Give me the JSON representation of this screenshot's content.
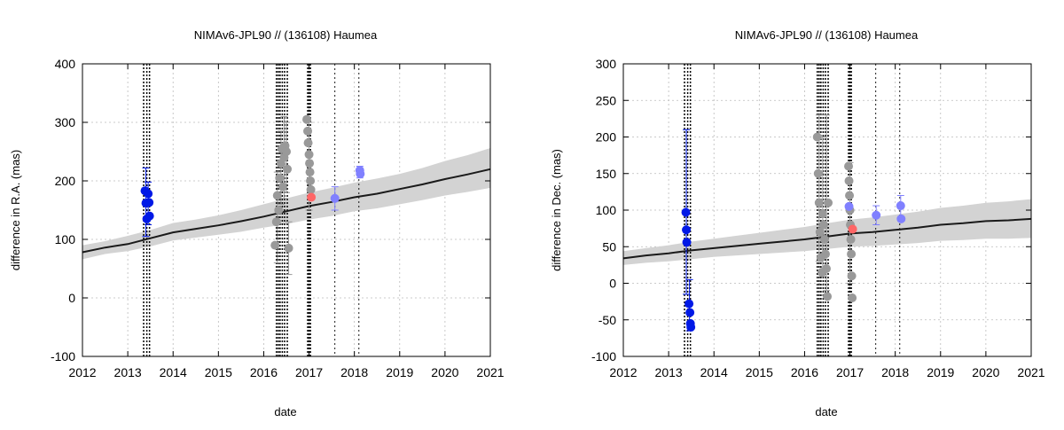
{
  "chart_data": [
    {
      "type": "scatter",
      "title": "NIMAv6-JPL90 // (136108) Haumea",
      "xlabel": "date",
      "ylabel": "difference in R.A. (mas)",
      "xlim": [
        2012,
        2021
      ],
      "ylim": [
        -100,
        400
      ],
      "xticks": [
        2012,
        2013,
        2014,
        2015,
        2016,
        2017,
        2018,
        2019,
        2020,
        2021
      ],
      "yticks": [
        -100,
        0,
        100,
        200,
        300,
        400
      ],
      "grid": true,
      "colors": {
        "blue": "#0019e6",
        "light_blue": "#8080ff",
        "gray": "#999999",
        "red": "#ff6666",
        "model": "#1a1a1a",
        "band": "#d3d3d3"
      },
      "model_curve": {
        "x": [
          2012.0,
          2012.5,
          2013.0,
          2013.5,
          2014.0,
          2014.5,
          2015.0,
          2015.5,
          2016.0,
          2016.5,
          2017.0,
          2017.5,
          2018.0,
          2018.5,
          2019.0,
          2019.5,
          2020.0,
          2020.5,
          2021.0
        ],
        "y": [
          78,
          86,
          92,
          102,
          112,
          118,
          124,
          131,
          139,
          148,
          157,
          164,
          172,
          178,
          186,
          194,
          203,
          211,
          220
        ],
        "band_upper": [
          90,
          97,
          106,
          116,
          128,
          134,
          141,
          150,
          160,
          170,
          180,
          188,
          197,
          204,
          212,
          222,
          234,
          244,
          256
        ],
        "band_lower": [
          66,
          75,
          80,
          88,
          98,
          103,
          108,
          113,
          120,
          126,
          134,
          140,
          148,
          153,
          160,
          167,
          175,
          181,
          188
        ]
      },
      "vlines": {
        "heavy": [
          2013.35,
          2013.42,
          2013.48,
          2016.28,
          2016.32,
          2016.36,
          2016.41,
          2016.46,
          2016.52,
          2016.97,
          2017.0,
          2017.03
        ],
        "thin": [
          2017.57,
          2018.1
        ]
      },
      "series": [
        {
          "name": "gray",
          "color": "#999999",
          "points": [
            [
              2016.25,
              90
            ],
            [
              2016.28,
              130
            ],
            [
              2016.3,
              175
            ],
            [
              2016.33,
              150
            ],
            [
              2016.35,
              205
            ],
            [
              2016.38,
              230
            ],
            [
              2016.4,
              255
            ],
            [
              2016.42,
              190
            ],
            [
              2016.45,
              240
            ],
            [
              2016.47,
              260
            ],
            [
              2016.5,
              250
            ],
            [
              2016.52,
              220
            ],
            [
              2016.55,
              85
            ],
            [
              2016.95,
              305
            ],
            [
              2016.97,
              285
            ],
            [
              2016.98,
              265
            ],
            [
              2017.0,
              245
            ],
            [
              2017.01,
              230
            ],
            [
              2017.02,
              215
            ],
            [
              2017.03,
              200
            ],
            [
              2017.04,
              185
            ]
          ],
          "err": [
            [
              2016.3,
              60,
              215
            ],
            [
              2016.38,
              160,
              285
            ],
            [
              2016.45,
              170,
              310
            ],
            [
              2016.5,
              180,
              300
            ],
            [
              2016.55,
              40,
              130
            ],
            [
              2017.0,
              150,
              300
            ]
          ]
        },
        {
          "name": "blue",
          "color": "#0019e6",
          "points": [
            [
              2013.38,
              183
            ],
            [
              2013.4,
              162
            ],
            [
              2013.42,
              135
            ],
            [
              2013.45,
              178
            ],
            [
              2013.47,
              163
            ],
            [
              2013.48,
              140
            ]
          ],
          "err": [
            [
              2013.4,
              105,
              222
            ],
            [
              2013.45,
              125,
              198
            ]
          ]
        },
        {
          "name": "light blue",
          "color": "#8080ff",
          "points": [
            [
              2017.57,
              170
            ],
            [
              2018.12,
              218
            ],
            [
              2018.13,
              212
            ]
          ],
          "err": [
            [
              2017.57,
              150,
              190
            ],
            [
              2018.12,
              205,
              225
            ]
          ]
        },
        {
          "name": "red",
          "color": "#ff6666",
          "points": [
            [
              2017.05,
              172
            ]
          ],
          "err": []
        }
      ]
    },
    {
      "type": "scatter",
      "title": "NIMAv6-JPL90 // (136108) Haumea",
      "xlabel": "date",
      "ylabel": "difference in Dec. (mas)",
      "xlim": [
        2012,
        2021
      ],
      "ylim": [
        -100,
        300
      ],
      "xticks": [
        2012,
        2013,
        2014,
        2015,
        2016,
        2017,
        2018,
        2019,
        2020,
        2021
      ],
      "yticks": [
        -100,
        -50,
        0,
        50,
        100,
        150,
        200,
        250,
        300
      ],
      "grid": true,
      "colors": {
        "blue": "#0019e6",
        "light_blue": "#8080ff",
        "gray": "#999999",
        "red": "#ff6666",
        "model": "#1a1a1a",
        "band": "#d3d3d3"
      },
      "model_curve": {
        "x": [
          2012.0,
          2012.5,
          2013.0,
          2013.5,
          2014.0,
          2014.5,
          2015.0,
          2015.5,
          2016.0,
          2016.5,
          2017.0,
          2017.5,
          2018.0,
          2018.5,
          2019.0,
          2019.5,
          2020.0,
          2020.5,
          2021.0
        ],
        "y": [
          34,
          38,
          41,
          45,
          48,
          51,
          54,
          57,
          60,
          64,
          68,
          70,
          73,
          76,
          80,
          82,
          85,
          86,
          88
        ],
        "band_upper": [
          44,
          48,
          52,
          57,
          61,
          65,
          69,
          73,
          77,
          82,
          87,
          90,
          94,
          98,
          103,
          106,
          110,
          112,
          115
        ],
        "band_lower": [
          25,
          28,
          30,
          33,
          36,
          38,
          40,
          42,
          44,
          47,
          50,
          51,
          53,
          55,
          58,
          59,
          61,
          61,
          62
        ]
      },
      "vlines": {
        "heavy": [
          2013.35,
          2013.42,
          2013.48,
          2016.28,
          2016.32,
          2016.36,
          2016.41,
          2016.46,
          2016.52,
          2016.97,
          2017.0,
          2017.03
        ],
        "thin": [
          2017.57,
          2018.1
        ]
      },
      "series": [
        {
          "name": "gray",
          "color": "#999999",
          "points": [
            [
              2016.28,
              200
            ],
            [
              2016.3,
              150
            ],
            [
              2016.32,
              110
            ],
            [
              2016.34,
              70
            ],
            [
              2016.36,
              35
            ],
            [
              2016.38,
              15
            ],
            [
              2016.4,
              95
            ],
            [
              2016.42,
              80
            ],
            [
              2016.44,
              60
            ],
            [
              2016.46,
              40
            ],
            [
              2016.48,
              20
            ],
            [
              2016.5,
              -18
            ],
            [
              2016.52,
              110
            ],
            [
              2016.97,
              160
            ],
            [
              2016.98,
              140
            ],
            [
              2016.99,
              120
            ],
            [
              2017.0,
              100
            ],
            [
              2017.01,
              80
            ],
            [
              2017.02,
              60
            ],
            [
              2017.03,
              40
            ],
            [
              2017.04,
              10
            ],
            [
              2017.05,
              -20
            ]
          ],
          "err": [
            [
              2016.32,
              30,
              230
            ],
            [
              2016.4,
              10,
              200
            ],
            [
              2016.48,
              -10,
              230
            ],
            [
              2017.0,
              0,
              165
            ]
          ]
        },
        {
          "name": "blue",
          "color": "#0019e6",
          "points": [
            [
              2013.38,
              97
            ],
            [
              2013.39,
              73
            ],
            [
              2013.4,
              56
            ],
            [
              2013.45,
              -28
            ],
            [
              2013.47,
              -40
            ],
            [
              2013.48,
              -55
            ],
            [
              2013.49,
              -60
            ]
          ],
          "err": [
            [
              2013.39,
              -15,
              210
            ],
            [
              2013.46,
              -65,
              5
            ]
          ]
        },
        {
          "name": "light blue",
          "color": "#8080ff",
          "points": [
            [
              2016.98,
              105
            ],
            [
              2017.58,
              93
            ],
            [
              2018.12,
              106
            ],
            [
              2018.13,
              88
            ]
          ],
          "err": [
            [
              2017.58,
              80,
              106
            ],
            [
              2018.12,
              90,
              120
            ]
          ]
        },
        {
          "name": "red",
          "color": "#ff6666",
          "points": [
            [
              2017.06,
              74
            ]
          ],
          "err": []
        }
      ]
    }
  ]
}
